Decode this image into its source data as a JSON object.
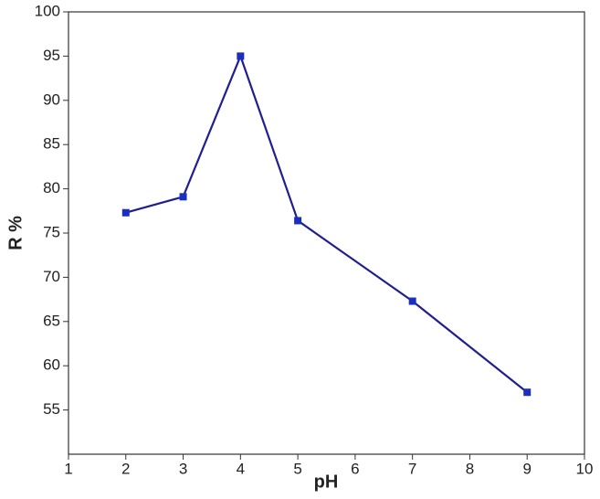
{
  "chart_data": {
    "type": "line",
    "x_label": "pH",
    "y_label": "R %",
    "x": [
      2,
      3,
      4,
      5,
      7,
      9
    ],
    "series": [
      {
        "color": "#1f1f8f",
        "marker_color": "#1a2fbf",
        "values": [
          77.3,
          79.1,
          95,
          76.4,
          67.3,
          57.0
        ]
      }
    ],
    "xlim": [
      1,
      10
    ],
    "xticks": [
      1,
      2,
      3,
      4,
      5,
      6,
      7,
      8,
      9,
      10
    ],
    "ylim": [
      50,
      100
    ],
    "yticks": [
      55,
      60,
      65,
      70,
      75,
      80,
      85,
      90,
      95,
      100
    ],
    "grid": false
  }
}
